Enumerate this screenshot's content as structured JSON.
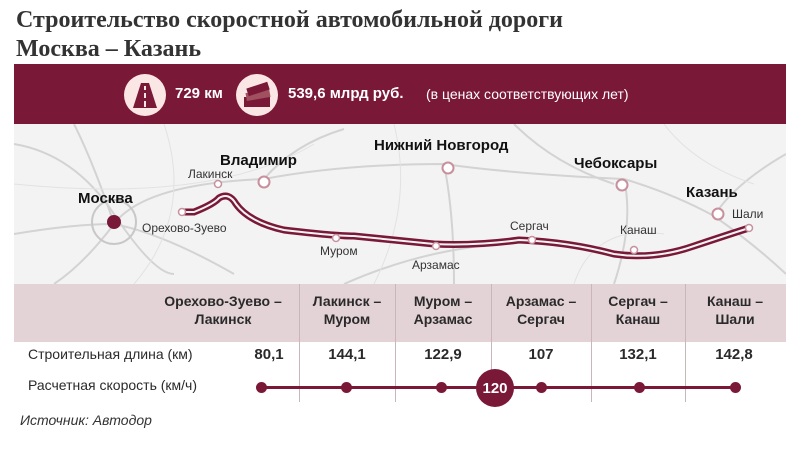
{
  "title": {
    "line1": "Строительство скоростной автомобильной дороги",
    "line2": "Москва – Казань"
  },
  "banner": {
    "length": "729 км",
    "cost": "539,6 млрд руб.",
    "cost_note": "(в ценах соответствующих лет)",
    "road_icon": "road-icon",
    "money_icon": "money-stack-icon",
    "accent_color": "#7a1838"
  },
  "map": {
    "cities_major": [
      "Москва",
      "Владимир",
      "Нижний Новгород",
      "Чебоксары",
      "Казань"
    ],
    "cities_minor": [
      "Лакинск",
      "Орехово-Зуево",
      "Муром",
      "Арзамас",
      "Сергач",
      "Канаш",
      "Шали"
    ]
  },
  "table": {
    "segments": [
      {
        "name": [
          "Орехово-Зуево –",
          "Лакинск"
        ],
        "length": "80,1"
      },
      {
        "name": [
          "Лакинск –",
          "Муром"
        ],
        "length": "144,1"
      },
      {
        "name": [
          "Муром –",
          "Арзамас"
        ],
        "length": "122,9"
      },
      {
        "name": [
          "Арзамас –",
          "Сергач"
        ],
        "length": "107"
      },
      {
        "name": [
          "Сергач –",
          "Канаш"
        ],
        "length": "132,1"
      },
      {
        "name": [
          "Канаш –",
          "Шали"
        ],
        "length": "142,8"
      }
    ],
    "row_length_label": "Строительная длина (км)",
    "row_speed_label": "Расчетная скорость (км/ч)",
    "speed": "120"
  },
  "source": "Источник: Автодор"
}
